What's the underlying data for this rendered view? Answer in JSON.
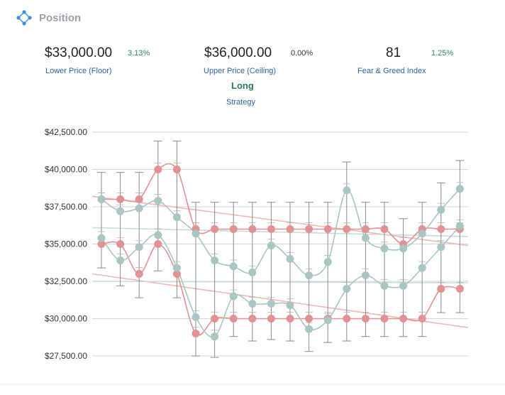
{
  "header": {
    "title": "Position",
    "icon": "position-logo-icon"
  },
  "metrics": {
    "floor": {
      "value": "$33,000.00",
      "pct": "3.13%",
      "label": "Lower Price (Floor)"
    },
    "ceiling": {
      "value": "$36,000.00",
      "pct": "0.00%",
      "label": "Upper Price (Ceiling)"
    },
    "fear_greed": {
      "value": "81",
      "pct": "1.25%",
      "label": "Fear & Greed Index"
    }
  },
  "strategy": {
    "value": "Long",
    "label": "Strategy"
  },
  "colors": {
    "red": "#e29292",
    "teal": "#a9c6c4",
    "positive": "#2c8a5a",
    "link": "#2b64a3"
  },
  "chart_data": {
    "type": "line",
    "yticks": [
      "$42,500.00",
      "$40,000.00",
      "$37,500.00",
      "$35,000.00",
      "$32,500.00",
      "$30,000.00",
      "$27,500.00"
    ],
    "ylim": [
      27500,
      42500
    ],
    "grid": true,
    "x_count": 20,
    "series": [
      {
        "color": "red",
        "values": [
          38000,
          38000,
          38000,
          40000,
          40000,
          36000,
          36000,
          36000,
          36000,
          36000,
          36000,
          36000,
          36000,
          36000,
          36000,
          36000,
          35000,
          36000,
          36000,
          36000
        ]
      },
      {
        "color": "red",
        "values": [
          35000,
          35000,
          33000,
          35000,
          33000,
          29000,
          30000,
          30000,
          30000,
          30000,
          30000,
          30000,
          30000,
          30000,
          30000,
          30000,
          30000,
          30000,
          32000,
          32000
        ]
      },
      {
        "color": "teal",
        "values": [
          38000,
          37200,
          37400,
          37900,
          36800,
          35700,
          33900,
          33500,
          33100,
          34900,
          34000,
          32900,
          33800,
          38600,
          35400,
          34700,
          34700,
          35700,
          37300,
          38700
        ]
      },
      {
        "color": "teal",
        "values": [
          35400,
          33900,
          34800,
          35600,
          33400,
          30100,
          28800,
          31500,
          31000,
          31000,
          30900,
          29300,
          29900,
          32000,
          32900,
          32200,
          32200,
          33400,
          34800,
          36200
        ]
      }
    ],
    "error_bars": {
      "upper": [
        39800,
        39800,
        39800,
        41900,
        41900,
        37800,
        37800,
        37800,
        37800,
        37800,
        37800,
        37800,
        37800,
        40500,
        37800,
        37800,
        36700,
        37800,
        39100,
        40600
      ],
      "lower": [
        33400,
        32200,
        31400,
        33200,
        31400,
        27500,
        27400,
        28800,
        28500,
        28600,
        28500,
        27800,
        28400,
        28500,
        28800,
        28800,
        28800,
        28800,
        30400,
        30400
      ]
    },
    "trend_lines": [
      {
        "color": "red",
        "from": 38200,
        "to": 34900
      },
      {
        "color": "red",
        "from": 33000,
        "to": 29400
      },
      {
        "color": "teal",
        "from": 36100,
        "to": 35500
      },
      {
        "color": "teal",
        "from": 32500,
        "to": 32400
      }
    ]
  }
}
